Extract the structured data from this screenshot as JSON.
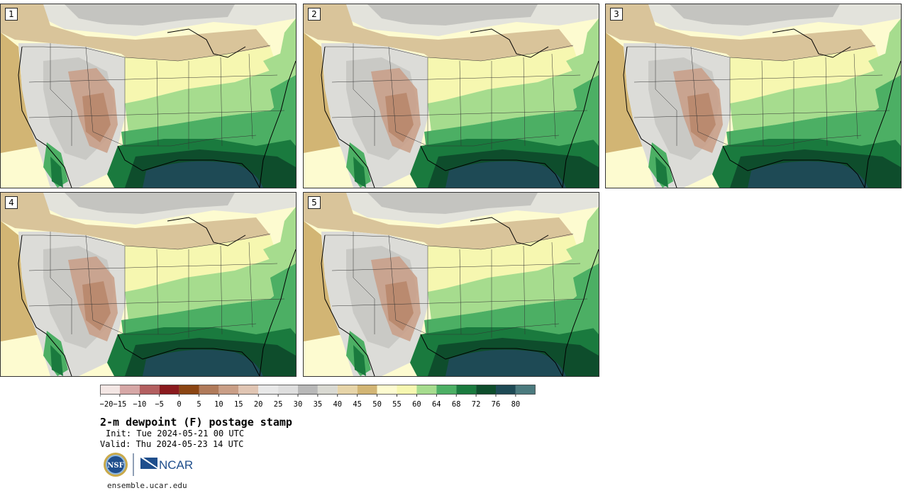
{
  "panels": [
    {
      "label": "1"
    },
    {
      "label": "2"
    },
    {
      "label": "3"
    },
    {
      "label": "4"
    },
    {
      "label": "5"
    }
  ],
  "colorbar": {
    "colors": [
      "#f3e6e4",
      "#d6a7a6",
      "#b35f60",
      "#8a1a1e",
      "#8b4513",
      "#b07a5a",
      "#c99e86",
      "#e0c5b3",
      "#e8e8e8",
      "#dedede",
      "#b8b8b8",
      "#d9d9d2",
      "#e6d4a8",
      "#d2b574",
      "#fdfbd0",
      "#f6f7b0",
      "#a6dc8e",
      "#4caf64",
      "#1a7a3e",
      "#0e4d2c",
      "#1e4a55",
      "#4b7a7e"
    ],
    "ticks": [
      "−20",
      "−15",
      "−10",
      "−5",
      "0",
      "5",
      "10",
      "15",
      "20",
      "25",
      "30",
      "35",
      "40",
      "45",
      "50",
      "55",
      "60",
      "64",
      "68",
      "72",
      "76",
      "80"
    ]
  },
  "title": "2-m dewpoint (F) postage stamp",
  "init": "Init: Tue 2024-05-21 00 UTC",
  "valid": "Valid: Thu 2024-05-23 14 UTC",
  "logos": {
    "nsf": "NSF",
    "ncar": "NCAR"
  },
  "site": "ensemble.ucar.edu"
}
